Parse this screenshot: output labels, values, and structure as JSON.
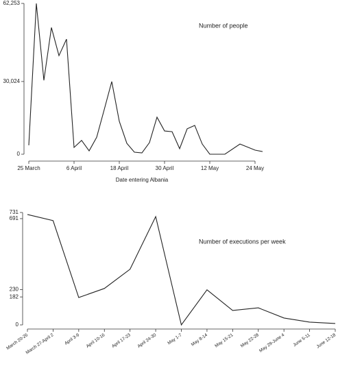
{
  "chart_data": [
    {
      "type": "line",
      "annotation": "Number of people",
      "x_label": "Date entering Albania",
      "x": [
        0,
        2,
        4,
        6,
        8,
        10,
        12,
        14,
        16,
        18,
        20,
        22,
        24,
        26,
        28,
        30,
        32,
        34,
        36,
        38,
        40,
        42,
        44,
        46,
        48,
        50,
        52,
        56,
        60,
        62
      ],
      "series": [
        {
          "name": "Number of people",
          "color": "#222",
          "values": [
            3700,
            62253,
            30500,
            52300,
            40700,
            47500,
            2800,
            5700,
            1400,
            7000,
            18400,
            30000,
            13600,
            4500,
            850,
            560,
            4800,
            15300,
            9600,
            9300,
            2300,
            10500,
            11900,
            4200,
            0,
            0,
            0,
            4200,
            1700,
            1100
          ]
        }
      ],
      "xlim": [
        0,
        60
      ],
      "xticks": [
        {
          "value": 0,
          "label": "25 March"
        },
        {
          "value": 12,
          "label": "6 April"
        },
        {
          "value": 24,
          "label": "18 April"
        },
        {
          "value": 36,
          "label": "30 April"
        },
        {
          "value": 48,
          "label": "12 May"
        },
        {
          "value": 60,
          "label": "24 May"
        }
      ],
      "ylim": [
        0,
        62253
      ],
      "yticks": [
        0,
        {
          "value": 30024,
          "label": "30,024"
        },
        {
          "value": 62253,
          "label": "62,253"
        }
      ]
    },
    {
      "type": "line",
      "annotation": "Number of executions per week",
      "categories": [
        "March 20-26",
        "March 27-April 2",
        "April 3-9",
        "April 10-16",
        "April 17-23",
        "April 24-30",
        "May 1-7",
        "May 8-14",
        "May 15-21",
        "May 22-28",
        "May 29-June 4",
        "June 5-11",
        "June 12-18"
      ],
      "series": [
        {
          "name": "Number of executions per week",
          "color": "#222",
          "values": [
            718,
            678,
            178,
            237,
            362,
            704,
            0,
            228,
            94,
            111,
            45,
            18,
            9
          ]
        }
      ],
      "ylim": [
        0,
        731
      ],
      "yticks": [
        0,
        182,
        230,
        691,
        731
      ]
    }
  ]
}
